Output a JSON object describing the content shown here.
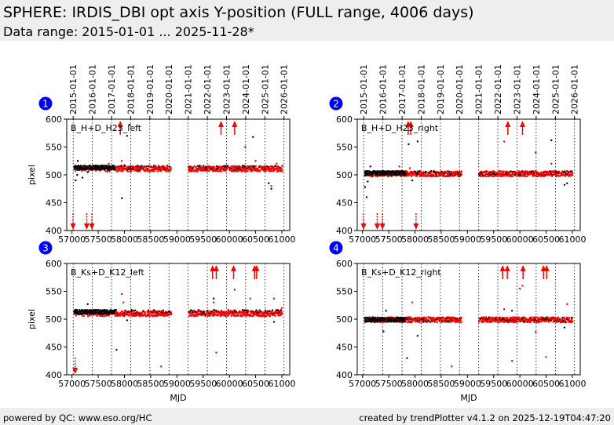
{
  "header": {
    "title": "SPHERE: IRDIS_DBI opt axis Y-position (FULL range, 4006 days)",
    "subtitle": "Data range: 2015-01-01 ... 2025-11-28*"
  },
  "footer": {
    "left": "powered by QC: www.eso.org/HC",
    "right": "created by trendPlotter v4.1.2 on 2025-12-19T04:47:20"
  },
  "colors": {
    "badge": "#0000ee",
    "red": "#ff0000",
    "black": "#000000"
  },
  "chart_data": {
    "type": "scatter",
    "x_axis": {
      "label": "MJD",
      "range": [
        56900,
        61150
      ],
      "ticks": [
        57000,
        57500,
        58000,
        58500,
        59000,
        59500,
        60000,
        60500,
        61000
      ]
    },
    "y_axis": {
      "label": "pixel",
      "range": [
        400,
        600
      ],
      "ticks": [
        400,
        450,
        500,
        550,
        600
      ]
    },
    "top_axis": {
      "labels": [
        "2015-01-01",
        "2016-01-01",
        "2017-01-01",
        "2018-01-01",
        "2019-01-01",
        "2020-01-01",
        "2021-01-01",
        "2022-01-01",
        "2023-01-01",
        "2024-01-01",
        "2025-01-01",
        "2026-01-01"
      ],
      "mjd": [
        57023,
        57388,
        57754,
        58119,
        58484,
        58849,
        59215,
        59580,
        59945,
        60310,
        60676,
        61041
      ]
    },
    "data_gap": [
      58890,
      59210
    ],
    "panels": [
      {
        "id": "1",
        "label": "B_H+D_H23_left",
        "black_level": 513,
        "red_level": 511,
        "black_spread": 4,
        "early_mjd_end": 57830,
        "black_outliers": [
          [
            57070,
            490
          ],
          [
            57100,
            500
          ],
          [
            57110,
            525
          ],
          [
            57200,
            495
          ],
          [
            57300,
            505
          ],
          [
            57950,
            458
          ],
          [
            58050,
            570
          ],
          [
            58100,
            590
          ],
          [
            60450,
            568
          ],
          [
            60750,
            485
          ],
          [
            60800,
            475
          ]
        ],
        "red_outliers": [
          [
            57700,
            520
          ],
          [
            57950,
            525
          ],
          [
            58000,
            518
          ],
          [
            60300,
            550
          ],
          [
            60800,
            480
          ],
          [
            60500,
            525
          ],
          [
            60900,
            520
          ]
        ],
        "arrows_up": [
          57920,
          59840,
          60100
        ],
        "arrows_down": [
          57020,
          57280,
          57380
        ]
      },
      {
        "id": "2",
        "label": "B_H+D_H23_right",
        "black_level": 503,
        "red_level": 502,
        "black_spread": 4,
        "early_mjd_end": 57830,
        "black_outliers": [
          [
            57050,
            478
          ],
          [
            57080,
            460
          ],
          [
            57100,
            488
          ],
          [
            57150,
            515
          ],
          [
            57880,
            555
          ],
          [
            58050,
            560
          ],
          [
            60600,
            562
          ],
          [
            60850,
            482
          ],
          [
            60900,
            485
          ],
          [
            60000,
            500
          ],
          [
            57950,
            490
          ]
        ],
        "red_outliers": [
          [
            57700,
            515
          ],
          [
            57900,
            512
          ],
          [
            60300,
            540
          ],
          [
            60600,
            520
          ],
          [
            59700,
            560
          ]
        ],
        "arrows_up": [
          57870,
          57920,
          59770,
          60050
        ],
        "arrows_down": [
          57020,
          57280,
          57380,
          58020
        ]
      },
      {
        "id": "3",
        "label": "B_Ks+D_K12_left",
        "black_level": 513,
        "red_level": 510,
        "black_spread": 4,
        "early_mjd_end": 57830,
        "black_outliers": [
          [
            57300,
            527
          ],
          [
            57850,
            445
          ],
          [
            58050,
            498
          ],
          [
            59700,
            537
          ],
          [
            60850,
            495
          ]
        ],
        "red_outliers": [
          [
            57950,
            545
          ],
          [
            57980,
            530
          ],
          [
            59700,
            530
          ],
          [
            59750,
            440
          ],
          [
            60100,
            553
          ],
          [
            60400,
            537
          ],
          [
            60850,
            537
          ],
          [
            58700,
            415
          ],
          [
            61000,
            520
          ]
        ],
        "arrows_up": [
          59680,
          59750,
          60080,
          60480,
          60520
        ],
        "arrows_down": [
          57060
        ]
      },
      {
        "id": "4",
        "label": "B_Ks+D_K12_right",
        "black_level": 499,
        "red_level": 499,
        "black_spread": 4,
        "early_mjd_end": 57830,
        "black_outliers": [
          [
            57400,
            478
          ],
          [
            57450,
            515
          ],
          [
            57850,
            430
          ],
          [
            58050,
            470
          ],
          [
            60850,
            485
          ],
          [
            59850,
            515
          ]
        ],
        "red_outliers": [
          [
            57950,
            530
          ],
          [
            58700,
            415
          ],
          [
            59850,
            425
          ],
          [
            60000,
            555
          ],
          [
            60050,
            560
          ],
          [
            60300,
            477
          ],
          [
            60500,
            432
          ],
          [
            60900,
            527
          ],
          [
            59700,
            518
          ]
        ],
        "arrows_up": [
          59670,
          59760,
          60060,
          60450,
          60510
        ],
        "arrows_down": []
      }
    ]
  }
}
